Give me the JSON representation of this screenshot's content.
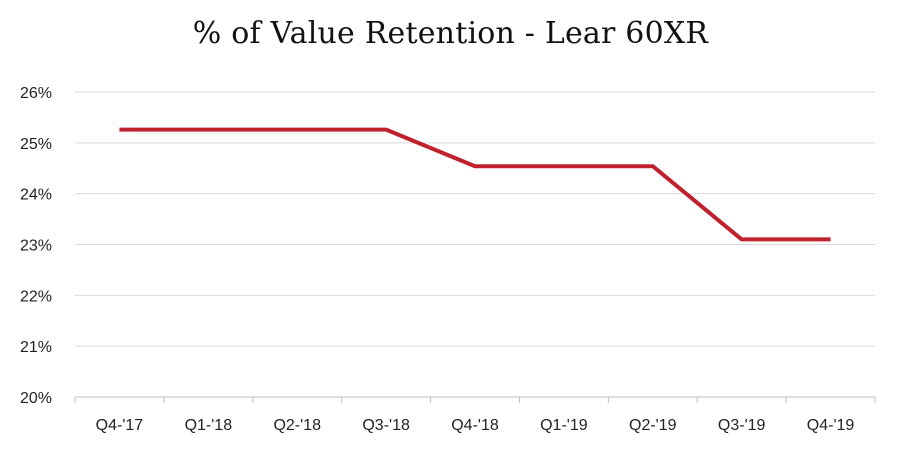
{
  "chart_data": {
    "type": "line",
    "title": "% of Value Retention - Lear 60XR",
    "xlabel": "",
    "ylabel": "",
    "categories": [
      "Q4-'17",
      "Q1-'18",
      "Q2-'18",
      "Q3-'18",
      "Q4-'18",
      "Q1-'19",
      "Q2-'19",
      "Q3-'19",
      "Q4-'19"
    ],
    "series": [
      {
        "values": [
          25.26,
          25.26,
          25.26,
          25.26,
          24.54,
          24.54,
          24.54,
          23.1,
          23.1
        ],
        "color": "#c0222d"
      }
    ],
    "ylim": [
      20,
      26
    ],
    "yticks": [
      20,
      21,
      22,
      23,
      24,
      25,
      26
    ],
    "ytick_labels": [
      "20%",
      "21%",
      "22%",
      "23%",
      "24%",
      "25%",
      "26%"
    ],
    "grid": true,
    "legend": "none"
  }
}
